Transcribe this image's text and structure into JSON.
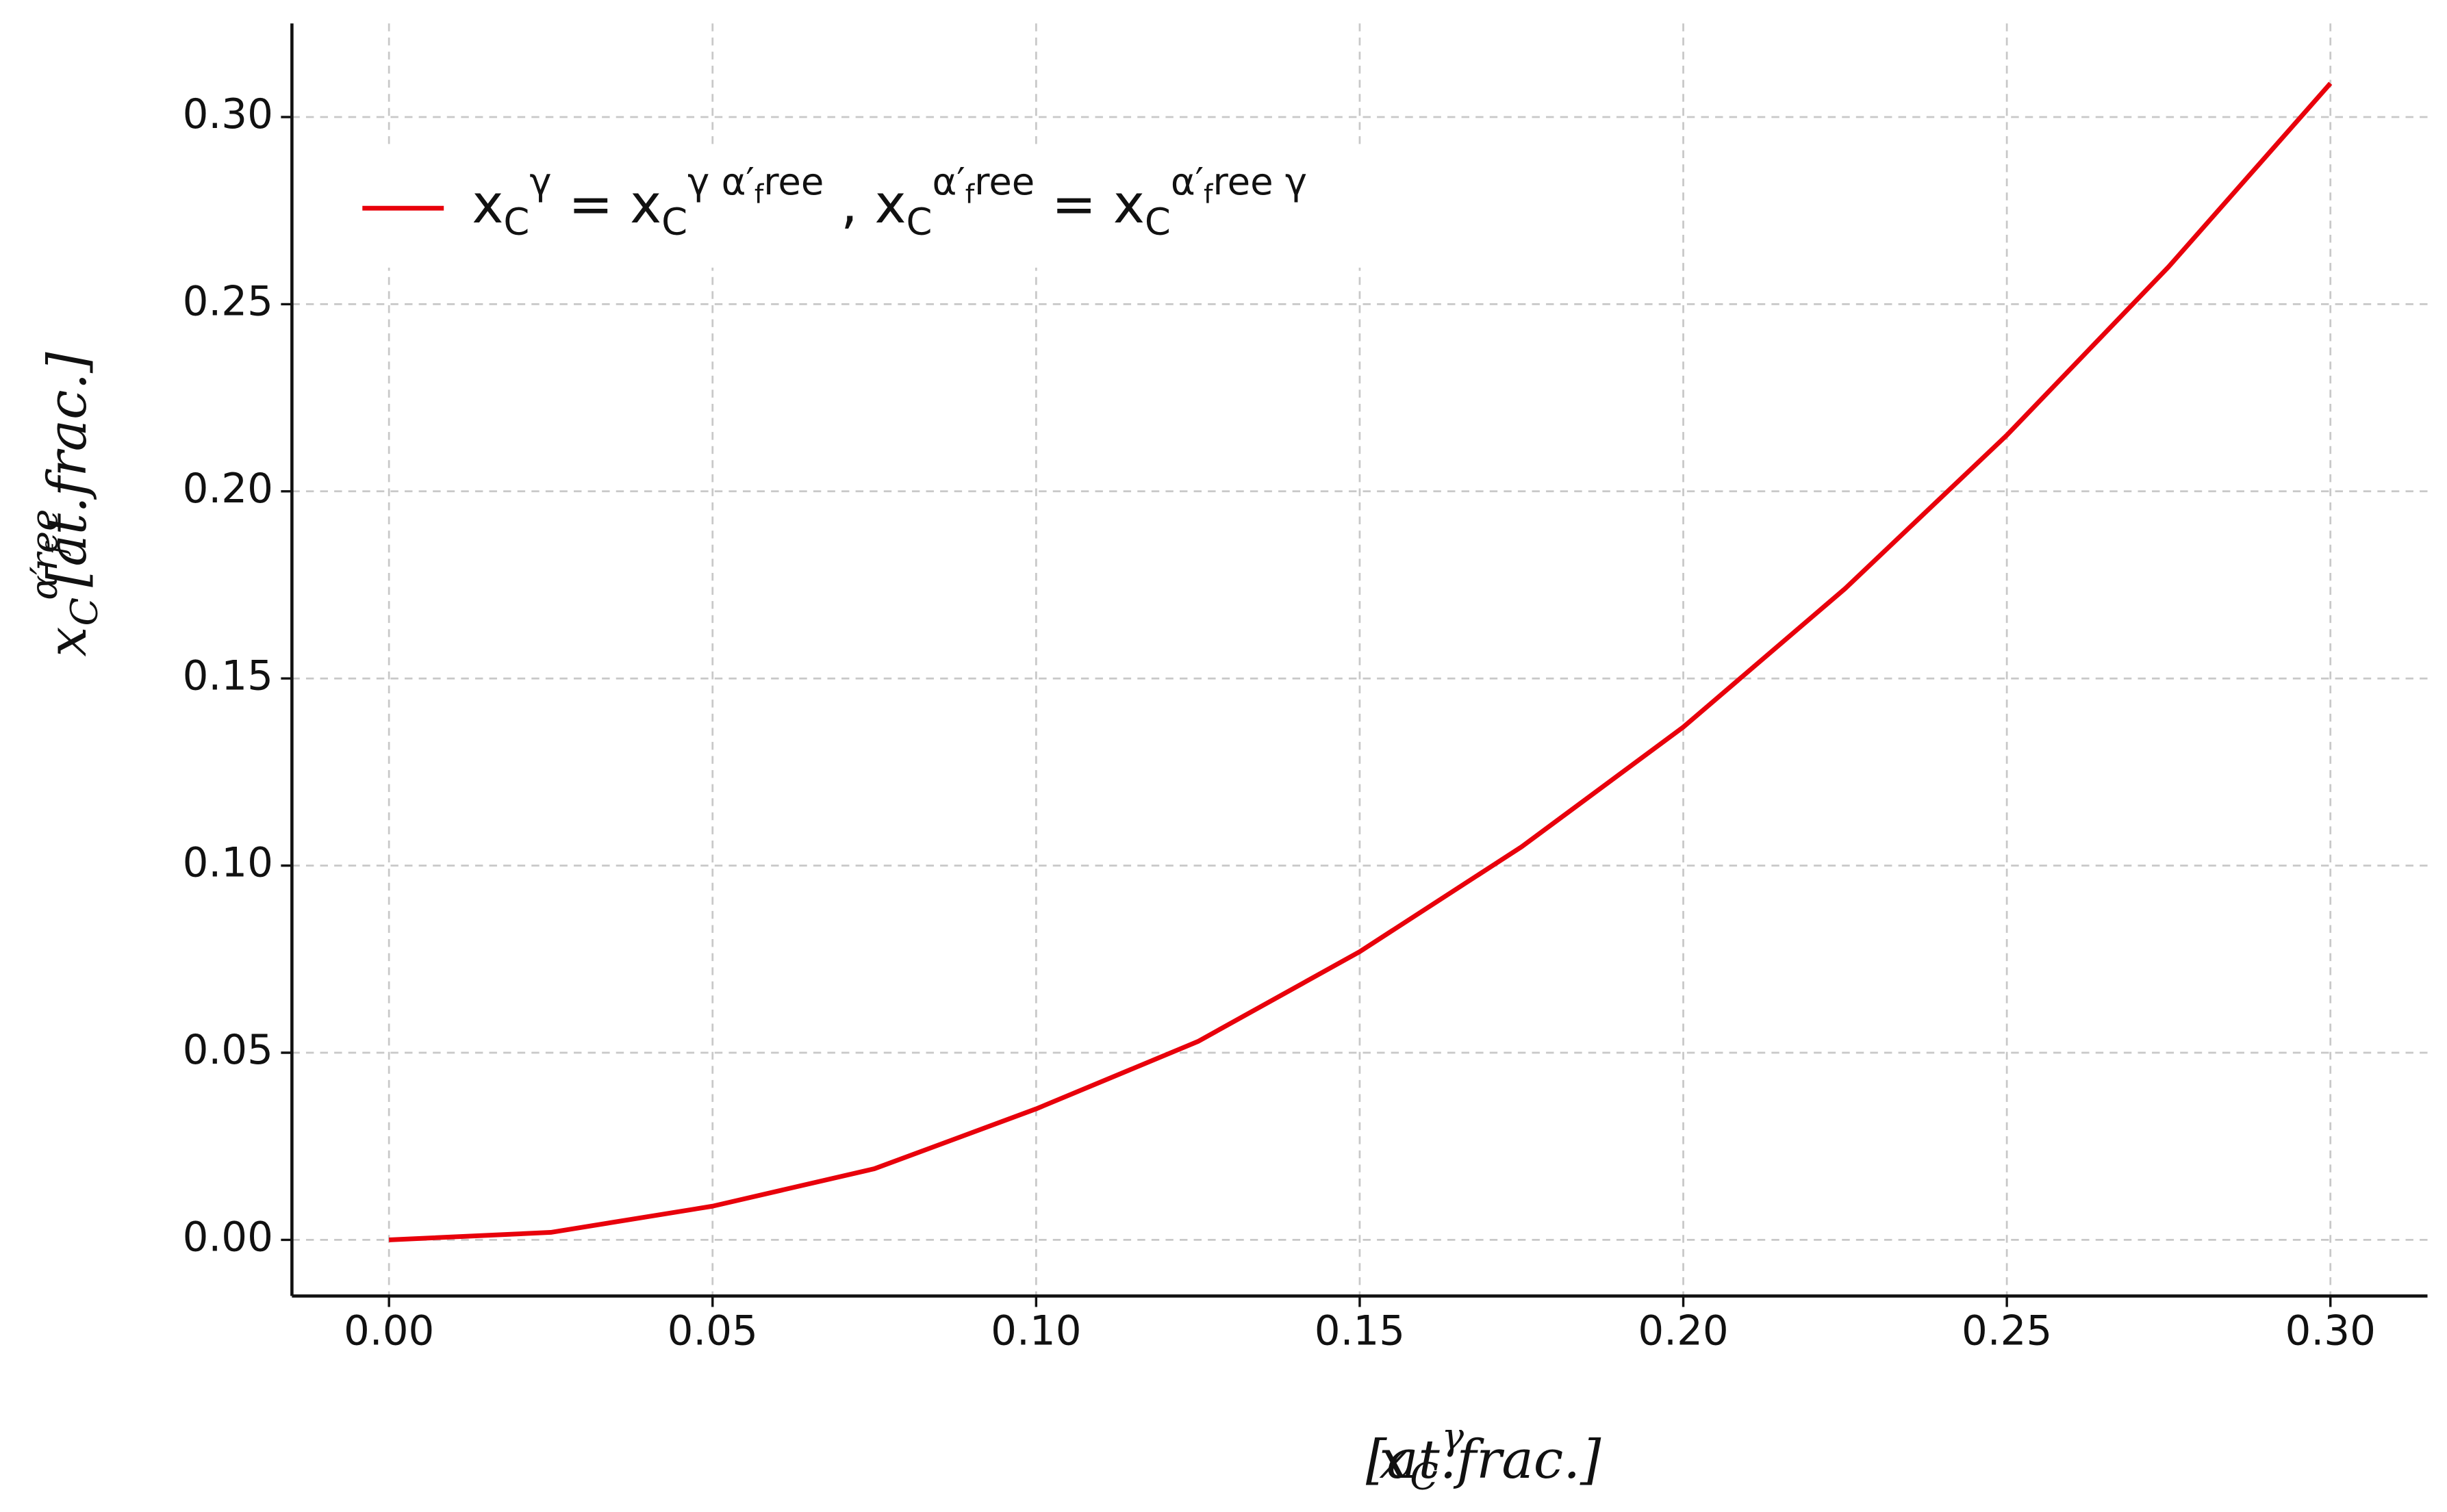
{
  "chart_data": {
    "type": "line",
    "xlabel": "x_C^γ [at.frac.]",
    "ylabel": "x_C^{α′_free} [at.frac.]",
    "x": [
      0,
      0.025,
      0.05,
      0.075,
      0.1,
      0.125,
      0.15,
      0.175,
      0.2,
      0.225,
      0.25,
      0.275,
      0.3
    ],
    "series": [
      {
        "name": "x_C^γ = x_C^{γ α′_free} , x_C^{α′_free} = x_C^{α′_free γ}",
        "color": "#e8000b",
        "values": [
          0,
          0.002,
          0.009,
          0.019,
          0.035,
          0.053,
          0.077,
          0.105,
          0.137,
          0.174,
          0.215,
          0.26,
          0.309
        ]
      }
    ],
    "xlim": [
      -0.015,
      0.315
    ],
    "ylim": [
      -0.015,
      0.325
    ],
    "xticks": [
      {
        "value": 0,
        "label": "0.00"
      },
      0.05,
      {
        "value": 0.1,
        "label": "0.10"
      },
      0.15,
      {
        "value": 0.2,
        "label": "0.20"
      },
      0.25,
      {
        "value": 0.3,
        "label": "0.30"
      }
    ],
    "yticks": [
      {
        "value": 0,
        "label": "0.00"
      },
      0.05,
      {
        "value": 0.1,
        "label": "0.10"
      },
      0.15,
      {
        "value": 0.2,
        "label": "0.20"
      },
      0.25,
      {
        "value": 0.3,
        "label": "0.30"
      }
    ],
    "grid": true,
    "legend": "upper left"
  }
}
